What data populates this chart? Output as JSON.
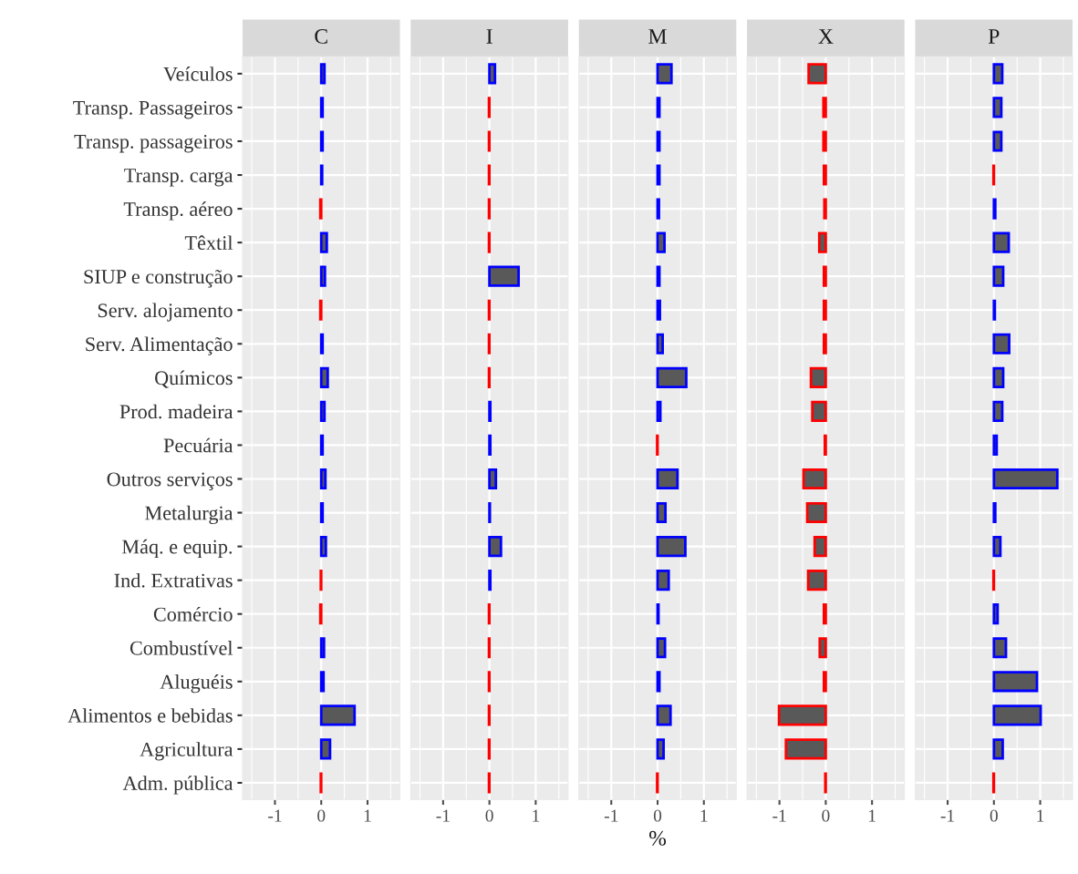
{
  "chart_data": [
    {
      "type": "bar",
      "orientation": "horizontal",
      "title": "C",
      "categories": [
        "Veículos",
        "Transp. Passageiros",
        "Transp. passageiros",
        "Transp. carga",
        "Transp. aéreo",
        "Têxtil",
        "SIUP e construção",
        "Serv. alojamento",
        "Serv. Alimentação",
        "Químicos",
        "Prod. madeira",
        "Pecuária",
        "Outros serviços",
        "Metalurgia",
        "Máq. e equip.",
        "Ind. Extrativas",
        "Comércio",
        "Combustível",
        "Aluguéis",
        "Alimentos e bebidas",
        "Agricultura",
        "Adm. pública"
      ],
      "values": [
        0.07,
        0.03,
        0.03,
        0.02,
        -0.02,
        0.12,
        0.08,
        -0.02,
        0.03,
        0.14,
        0.07,
        0.03,
        0.09,
        0.03,
        0.1,
        -0.01,
        -0.02,
        0.06,
        0.05,
        0.72,
        0.19,
        -0.01
      ],
      "color": "#595959",
      "colors": [
        "#0000ff",
        "#0000ff",
        "#0000ff",
        "#0000ff",
        "#ff0000",
        "#0000ff",
        "#0000ff",
        "#ff0000",
        "#0000ff",
        "#0000ff",
        "#0000ff",
        "#0000ff",
        "#0000ff",
        "#0000ff",
        "#0000ff",
        "#ff0000",
        "#ff0000",
        "#0000ff",
        "#0000ff",
        "#0000ff",
        "#0000ff",
        "#ff0000"
      ],
      "xlim": [
        -1.7,
        1.7
      ],
      "xticks": [
        -1,
        0,
        1
      ],
      "grid": true
    },
    {
      "type": "bar",
      "orientation": "horizontal",
      "title": "I",
      "categories": [
        null,
        null,
        null,
        null,
        null,
        null,
        null,
        null,
        null,
        null,
        null,
        null,
        null,
        null,
        null,
        null,
        null,
        null,
        null,
        null,
        null,
        null
      ],
      "values": [
        0.12,
        -0.01,
        -0.01,
        -0.01,
        -0.01,
        -0.01,
        0.63,
        -0.01,
        -0.01,
        -0.01,
        0.02,
        0.02,
        0.14,
        0.01,
        0.25,
        0.02,
        -0.01,
        -0.01,
        -0.01,
        -0.01,
        -0.01,
        -0.01
      ],
      "color": "#595959",
      "colors": [
        "#0000ff",
        "#ff0000",
        "#ff0000",
        "#ff0000",
        "#ff0000",
        "#ff0000",
        "#0000ff",
        "#ff0000",
        "#ff0000",
        "#ff0000",
        "#0000ff",
        "#0000ff",
        "#0000ff",
        "#0000ff",
        "#0000ff",
        "#0000ff",
        "#ff0000",
        "#ff0000",
        "#ff0000",
        "#ff0000",
        "#ff0000",
        "#ff0000"
      ],
      "xlim": [
        -1.7,
        1.7
      ],
      "xticks": [
        -1,
        0,
        1
      ],
      "grid": true,
      "tick_labels": "x"
    },
    {
      "type": "bar",
      "orientation": "horizontal",
      "title": "M",
      "xlabel": "%",
      "categories": [
        null,
        null,
        null,
        null,
        null,
        null,
        null,
        null,
        null,
        null,
        null,
        null,
        null,
        null,
        null,
        null,
        null,
        null,
        null,
        null,
        null,
        null
      ],
      "values": [
        0.3,
        0.04,
        0.04,
        0.04,
        0.03,
        0.15,
        0.04,
        0.05,
        0.11,
        0.62,
        0.06,
        -0.01,
        0.43,
        0.17,
        0.6,
        0.24,
        0.02,
        0.16,
        0.04,
        0.28,
        0.13,
        -0.01
      ],
      "color": "#595959",
      "colors": [
        "#0000ff",
        "#0000ff",
        "#0000ff",
        "#0000ff",
        "#0000ff",
        "#0000ff",
        "#0000ff",
        "#0000ff",
        "#0000ff",
        "#0000ff",
        "#0000ff",
        "#ff0000",
        "#0000ff",
        "#0000ff",
        "#0000ff",
        "#0000ff",
        "#0000ff",
        "#0000ff",
        "#0000ff",
        "#0000ff",
        "#0000ff",
        "#ff0000"
      ],
      "xlim": [
        -1.7,
        1.7
      ],
      "xticks": [
        -1,
        0,
        1
      ],
      "grid": true,
      "tick_labels": "x"
    },
    {
      "type": "bar",
      "orientation": "horizontal",
      "title": "X",
      "categories": [
        null,
        null,
        null,
        null,
        null,
        null,
        null,
        null,
        null,
        null,
        null,
        null,
        null,
        null,
        null,
        null,
        null,
        null,
        null,
        null,
        null,
        null
      ],
      "values": [
        -0.37,
        -0.05,
        -0.05,
        -0.04,
        -0.03,
        -0.14,
        -0.04,
        -0.04,
        -0.04,
        -0.32,
        -0.29,
        -0.02,
        -0.48,
        -0.4,
        -0.24,
        -0.38,
        -0.04,
        -0.13,
        -0.04,
        -1.01,
        -0.86,
        -0.01
      ],
      "color": "#595959",
      "colors": [
        "#ff0000",
        "#ff0000",
        "#ff0000",
        "#ff0000",
        "#ff0000",
        "#ff0000",
        "#ff0000",
        "#ff0000",
        "#ff0000",
        "#ff0000",
        "#ff0000",
        "#ff0000",
        "#ff0000",
        "#ff0000",
        "#ff0000",
        "#ff0000",
        "#ff0000",
        "#ff0000",
        "#ff0000",
        "#ff0000",
        "#ff0000",
        "#ff0000"
      ],
      "xlim": [
        -1.7,
        1.7
      ],
      "xticks": [
        -1,
        0,
        1
      ],
      "grid": true,
      "tick_labels": "x"
    },
    {
      "type": "bar",
      "orientation": "horizontal",
      "title": "P",
      "categories": [
        null,
        null,
        null,
        null,
        null,
        null,
        null,
        null,
        null,
        null,
        null,
        null,
        null,
        null,
        null,
        null,
        null,
        null,
        null,
        null,
        null,
        null
      ],
      "values": [
        0.18,
        0.16,
        0.16,
        -0.01,
        0.03,
        0.32,
        0.2,
        0.02,
        0.33,
        0.2,
        0.18,
        0.06,
        1.37,
        0.03,
        0.14,
        -0.01,
        0.08,
        0.26,
        0.93,
        1.01,
        0.19,
        -0.01
      ],
      "color": "#595959",
      "colors": [
        "#0000ff",
        "#0000ff",
        "#0000ff",
        "#ff0000",
        "#0000ff",
        "#0000ff",
        "#0000ff",
        "#0000ff",
        "#0000ff",
        "#0000ff",
        "#0000ff",
        "#0000ff",
        "#0000ff",
        "#0000ff",
        "#0000ff",
        "#ff0000",
        "#0000ff",
        "#0000ff",
        "#0000ff",
        "#0000ff",
        "#0000ff",
        "#ff0000"
      ],
      "xlim": [
        -1.7,
        1.7
      ],
      "xticks": [
        -1,
        0,
        1
      ],
      "grid": true,
      "tick_labels": "x"
    }
  ]
}
